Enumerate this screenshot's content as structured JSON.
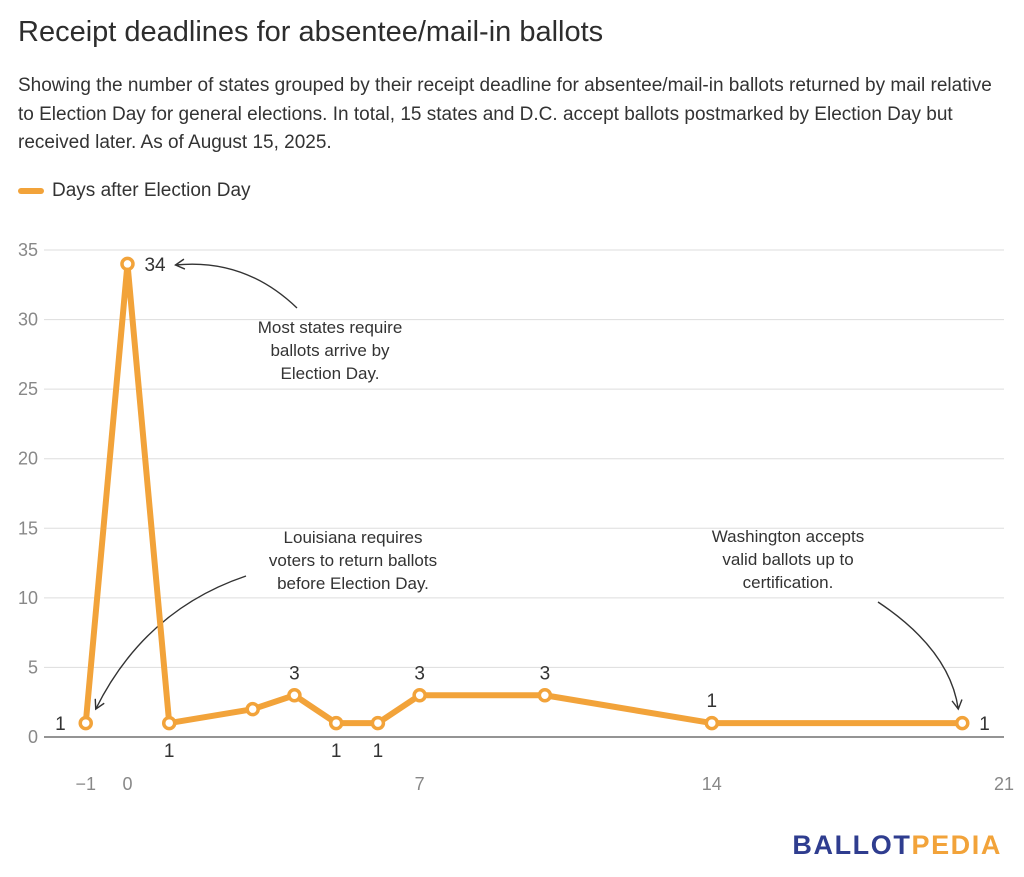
{
  "title": "Receipt deadlines for absentee/mail-in ballots",
  "subtitle": "Showing the number of states grouped by their receipt deadline for absentee/mail-in ballots returned by mail relative to Election Day for general elections. In total, 15 states and D.C. accept ballots postmarked by Election Day but received later. As of August 15, 2025.",
  "legend": {
    "label": "Days after Election Day",
    "color": "#f2a33a"
  },
  "logo": {
    "part1": "BALLOT",
    "part2": "PEDIA",
    "color1": "#2f3d8f",
    "color2": "#f2a33a"
  },
  "chart_data": {
    "type": "line",
    "series": [
      {
        "name": "Days after Election Day",
        "color": "#f2a33a",
        "x": [
          -1,
          0,
          1,
          3,
          4,
          5,
          6,
          7,
          10,
          14,
          20
        ],
        "y": [
          1,
          34,
          1,
          2,
          3,
          1,
          1,
          3,
          3,
          1,
          1
        ]
      }
    ],
    "xlim": [
      -2,
      21
    ],
    "ylim": [
      0,
      35
    ],
    "x_ticks": [
      -1,
      0,
      7,
      14,
      21
    ],
    "x_tick_labels": [
      "−1",
      "0",
      "7",
      "14",
      "21"
    ],
    "y_ticks": [
      0,
      5,
      10,
      15,
      20,
      25,
      30,
      35
    ],
    "grid": true,
    "data_labels": [
      {
        "x": -1,
        "y": 1,
        "text": "1",
        "pos": "left"
      },
      {
        "x": 0,
        "y": 34,
        "text": "34",
        "pos": "right"
      },
      {
        "x": 1,
        "y": 1,
        "text": "1",
        "pos": "below"
      },
      {
        "x": 4,
        "y": 3,
        "text": "3",
        "pos": "above"
      },
      {
        "x": 5,
        "y": 1,
        "text": "1",
        "pos": "below"
      },
      {
        "x": 6,
        "y": 1,
        "text": "1",
        "pos": "below"
      },
      {
        "x": 7,
        "y": 3,
        "text": "3",
        "pos": "above"
      },
      {
        "x": 10,
        "y": 3,
        "text": "3",
        "pos": "above"
      },
      {
        "x": 14,
        "y": 1,
        "text": "1",
        "pos": "above"
      },
      {
        "x": 20,
        "y": 1,
        "text": "1",
        "pos": "right"
      }
    ],
    "annotations": [
      {
        "lines": [
          "Most states require",
          "ballots arrive by",
          "Election Day."
        ]
      },
      {
        "lines": [
          "Louisiana requires",
          "voters to return ballots",
          "before Election Day."
        ]
      },
      {
        "lines": [
          "Washington accepts",
          "valid ballots up to",
          "certification."
        ]
      }
    ]
  }
}
